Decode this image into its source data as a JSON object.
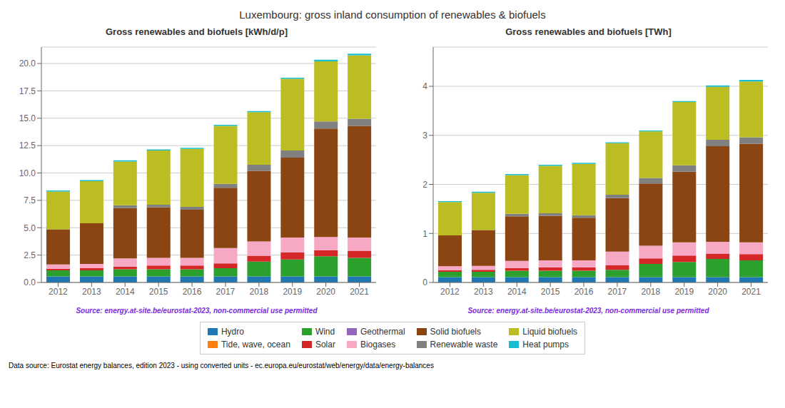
{
  "title": "Luxembourg: gross inland consumption of renewables & biofuels",
  "annotations": [
    "Data source: Eurostat energy balances, edition 2023 - using converted units - ec.europa.eu/eurostat/web/energy/data/energy-balances"
  ],
  "legend": "bottom",
  "chart_data": [
    {
      "type": "bar",
      "stacked": true,
      "title": "Gross renewables and biofuels [kWh/d/p]",
      "annotations": [
        "Source: energy.at-site.be/eurostat-2023, non-commercial use permitted"
      ],
      "categories": [
        "2012",
        "2013",
        "2014",
        "2015",
        "2016",
        "2017",
        "2018",
        "2019",
        "2020",
        "2021"
      ],
      "series": [
        {
          "name": "Hydro",
          "color": "#1f77b4",
          "values": [
            0.55,
            0.55,
            0.55,
            0.55,
            0.55,
            0.55,
            0.55,
            0.55,
            0.55,
            0.55
          ]
        },
        {
          "name": "Tide, wave, ocean",
          "color": "#ff7f0e",
          "values": [
            0.0,
            0.0,
            0.0,
            0.0,
            0.0,
            0.0,
            0.0,
            0.0,
            0.0,
            0.0
          ]
        },
        {
          "name": "Wind",
          "color": "#2ca02c",
          "values": [
            0.55,
            0.55,
            0.65,
            0.65,
            0.65,
            0.75,
            1.35,
            1.55,
            1.85,
            1.7
          ]
        },
        {
          "name": "Solar",
          "color": "#d62728",
          "values": [
            0.15,
            0.2,
            0.25,
            0.35,
            0.35,
            0.45,
            0.55,
            0.65,
            0.55,
            0.65
          ]
        },
        {
          "name": "Geothermal",
          "color": "#9467bd",
          "values": [
            0.0,
            0.0,
            0.0,
            0.0,
            0.0,
            0.0,
            0.0,
            0.0,
            0.0,
            0.0
          ]
        },
        {
          "name": "Biogases",
          "color": "#f7a8c4",
          "values": [
            0.4,
            0.4,
            0.75,
            0.7,
            0.7,
            1.4,
            1.3,
            1.35,
            1.2,
            1.2
          ]
        },
        {
          "name": "Solid biofuels",
          "color": "#8b4513",
          "values": [
            3.2,
            3.7,
            4.6,
            4.6,
            4.4,
            5.5,
            6.45,
            7.3,
            9.9,
            10.2
          ]
        },
        {
          "name": "Renewable waste",
          "color": "#808080",
          "values": [
            0.0,
            0.0,
            0.25,
            0.25,
            0.25,
            0.35,
            0.55,
            0.65,
            0.65,
            0.65
          ]
        },
        {
          "name": "Liquid biofuels",
          "color": "#bcbd22",
          "values": [
            3.45,
            3.85,
            4.0,
            4.95,
            5.3,
            5.3,
            4.8,
            6.55,
            5.5,
            5.8
          ]
        },
        {
          "name": "Heat pumps",
          "color": "#17becf",
          "values": [
            0.1,
            0.1,
            0.1,
            0.1,
            0.1,
            0.1,
            0.1,
            0.1,
            0.15,
            0.15
          ]
        }
      ],
      "ylim": [
        0,
        21.5
      ],
      "yticks": [
        {
          "value": 0,
          "label": "0.0"
        },
        2.5,
        {
          "value": 5,
          "label": "5.0"
        },
        7.5,
        {
          "value": 10,
          "label": "10.0"
        },
        12.5,
        {
          "value": 15,
          "label": "15.0"
        },
        17.5,
        {
          "value": 20,
          "label": "20.0"
        }
      ],
      "grid": true
    },
    {
      "type": "bar",
      "stacked": true,
      "title": "Gross renewables and biofuels [TWh]",
      "annotations": [
        "Source: energy.at-site.be/eurostat-2023, non-commercial use permitted"
      ],
      "categories": [
        "2012",
        "2013",
        "2014",
        "2015",
        "2016",
        "2017",
        "2018",
        "2019",
        "2020",
        "2021"
      ],
      "series": [
        {
          "name": "Hydro",
          "color": "#1f77b4",
          "values": [
            0.11,
            0.11,
            0.11,
            0.11,
            0.11,
            0.11,
            0.11,
            0.11,
            0.11,
            0.11
          ]
        },
        {
          "name": "Tide, wave, ocean",
          "color": "#ff7f0e",
          "values": [
            0.0,
            0.0,
            0.0,
            0.0,
            0.0,
            0.0,
            0.0,
            0.0,
            0.0,
            0.0
          ]
        },
        {
          "name": "Wind",
          "color": "#2ca02c",
          "values": [
            0.11,
            0.11,
            0.13,
            0.13,
            0.13,
            0.15,
            0.27,
            0.31,
            0.37,
            0.34
          ]
        },
        {
          "name": "Solar",
          "color": "#d62728",
          "values": [
            0.03,
            0.04,
            0.05,
            0.07,
            0.07,
            0.09,
            0.11,
            0.13,
            0.11,
            0.13
          ]
        },
        {
          "name": "Geothermal",
          "color": "#9467bd",
          "values": [
            0.0,
            0.0,
            0.0,
            0.0,
            0.0,
            0.0,
            0.0,
            0.0,
            0.0,
            0.0
          ]
        },
        {
          "name": "Biogases",
          "color": "#f7a8c4",
          "values": [
            0.08,
            0.08,
            0.15,
            0.14,
            0.14,
            0.28,
            0.26,
            0.27,
            0.24,
            0.24
          ]
        },
        {
          "name": "Solid biofuels",
          "color": "#8b4513",
          "values": [
            0.63,
            0.73,
            0.91,
            0.91,
            0.87,
            1.09,
            1.27,
            1.44,
            1.95,
            2.01
          ]
        },
        {
          "name": "Renewable waste",
          "color": "#808080",
          "values": [
            0.0,
            0.0,
            0.05,
            0.05,
            0.05,
            0.07,
            0.11,
            0.13,
            0.13,
            0.13
          ]
        },
        {
          "name": "Liquid biofuels",
          "color": "#bcbd22",
          "values": [
            0.68,
            0.76,
            0.79,
            0.97,
            1.05,
            1.05,
            0.95,
            1.29,
            1.08,
            1.14
          ]
        },
        {
          "name": "Heat pumps",
          "color": "#17becf",
          "values": [
            0.02,
            0.02,
            0.02,
            0.02,
            0.02,
            0.02,
            0.02,
            0.02,
            0.03,
            0.03
          ]
        }
      ],
      "ylim": [
        0,
        4.8
      ],
      "yticks": [
        0,
        1,
        2,
        3,
        4
      ],
      "grid": true
    }
  ]
}
